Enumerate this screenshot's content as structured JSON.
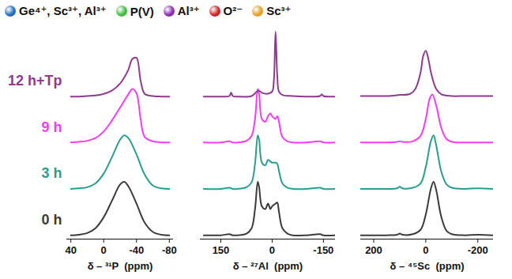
{
  "species_legend": [
    {
      "label": "Ge⁴⁺, Sc³⁺, Al³⁺",
      "color": "#1f6fc0"
    },
    {
      "label": "P(V)",
      "color": "#3fbf3f"
    },
    {
      "label": "Al³⁺",
      "color": "#8a2bb8"
    },
    {
      "label": "O²⁻",
      "color": "#d42020"
    },
    {
      "label": "Sc³⁺",
      "color": "#e8a020"
    }
  ],
  "chart_data": [
    {
      "type": "line",
      "x_label": "δ – ³¹P  (ppm)",
      "xlim": [
        45,
        -85
      ],
      "xticks": [
        40,
        0,
        -40,
        -80
      ],
      "tick_labels": "x",
      "series": [
        {
          "name": "0 h",
          "color": "#3b3b3b",
          "x": [
            40,
            30,
            20,
            10,
            0,
            -10,
            -20,
            -25,
            -30,
            -40,
            -50,
            -60,
            -70,
            -80
          ],
          "values": [
            0.02,
            0.03,
            0.06,
            0.15,
            0.35,
            0.65,
            0.95,
            1.0,
            0.92,
            0.6,
            0.25,
            0.08,
            0.03,
            0.02
          ]
        },
        {
          "name": "3 h",
          "color": "#2a9d8e",
          "x": [
            40,
            30,
            20,
            10,
            0,
            -10,
            -20,
            -25,
            -30,
            -40,
            -50,
            -60,
            -70,
            -80
          ],
          "values": [
            0.02,
            0.03,
            0.05,
            0.12,
            0.3,
            0.6,
            0.92,
            1.0,
            0.95,
            0.65,
            0.28,
            0.08,
            0.03,
            0.02
          ]
        },
        {
          "name": "9 h",
          "color": "#f53cf5",
          "x": [
            40,
            30,
            20,
            10,
            0,
            -10,
            -20,
            -30,
            -35,
            -40,
            -45,
            -50,
            -60,
            -70,
            -80
          ],
          "values": [
            0.02,
            0.03,
            0.05,
            0.1,
            0.22,
            0.42,
            0.66,
            0.9,
            1.0,
            0.92,
            0.45,
            0.12,
            0.04,
            0.02,
            0.02
          ]
        },
        {
          "name": "12 h+Tp",
          "color": "#8e3a8e",
          "x": [
            40,
            30,
            20,
            10,
            0,
            -10,
            -20,
            -30,
            -35,
            -40,
            -45,
            -50,
            -60,
            -70,
            -80
          ],
          "values": [
            0.01,
            0.01,
            0.02,
            0.03,
            0.06,
            0.12,
            0.25,
            0.5,
            0.7,
            0.72,
            0.3,
            0.06,
            0.02,
            0.01,
            0.01
          ]
        }
      ]
    },
    {
      "type": "line",
      "x_label": "δ – ²⁷Al  (ppm)",
      "xlim": [
        210,
        -185
      ],
      "xticks": [
        150,
        0,
        -150
      ],
      "tick_labels": "x",
      "series": [
        {
          "color": "#3b3b3b",
          "x": [
            200,
            150,
            125,
            115,
            100,
            75,
            60,
            50,
            42,
            38,
            30,
            20,
            12,
            5,
            0,
            -10,
            -15,
            -20,
            -30,
            -45,
            -60,
            -100,
            -140,
            -150,
            -185
          ],
          "values": [
            0.02,
            0.02,
            0.04,
            0.02,
            0.02,
            0.05,
            0.15,
            0.5,
            1.0,
            0.9,
            0.55,
            0.5,
            0.6,
            0.5,
            0.55,
            0.6,
            0.62,
            0.45,
            0.15,
            0.05,
            0.02,
            0.02,
            0.04,
            0.02,
            0.02
          ]
        },
        {
          "color": "#2a9d8e",
          "x": [
            200,
            150,
            125,
            115,
            100,
            75,
            60,
            50,
            42,
            38,
            30,
            20,
            12,
            5,
            0,
            -10,
            -15,
            -20,
            -30,
            -45,
            -60,
            -100,
            -140,
            -150,
            -185
          ],
          "values": [
            0.02,
            0.02,
            0.04,
            0.02,
            0.02,
            0.05,
            0.14,
            0.48,
            1.0,
            0.92,
            0.5,
            0.45,
            0.55,
            0.52,
            0.5,
            0.5,
            0.48,
            0.35,
            0.12,
            0.04,
            0.02,
            0.02,
            0.04,
            0.02,
            0.02
          ]
        },
        {
          "color": "#f53cf5",
          "x": [
            200,
            150,
            125,
            115,
            100,
            75,
            60,
            50,
            42,
            38,
            30,
            20,
            12,
            5,
            0,
            -10,
            -15,
            -20,
            -30,
            -45,
            -60,
            -100,
            -140,
            -150,
            -185
          ],
          "values": [
            0.02,
            0.02,
            0.04,
            0.02,
            0.02,
            0.05,
            0.14,
            0.45,
            1.0,
            0.9,
            0.45,
            0.4,
            0.5,
            0.55,
            0.5,
            0.45,
            0.5,
            0.4,
            0.12,
            0.04,
            0.02,
            0.02,
            0.04,
            0.02,
            0.02
          ]
        },
        {
          "color": "#8e3a8e",
          "x": [
            200,
            150,
            125,
            120,
            115,
            100,
            60,
            45,
            40,
            30,
            15,
            0,
            -5,
            -10,
            -15,
            -20,
            -30,
            -60,
            -100,
            -140,
            -145,
            -150,
            -185
          ],
          "values": [
            0.01,
            0.01,
            0.02,
            0.08,
            0.02,
            0.01,
            0.02,
            0.1,
            0.12,
            0.08,
            0.06,
            0.1,
            0.3,
            1.2,
            0.4,
            0.1,
            0.04,
            0.02,
            0.01,
            0.02,
            0.05,
            0.02,
            0.01
          ]
        }
      ]
    },
    {
      "type": "line",
      "x_label": "δ – ⁴⁵Sc  (ppm)",
      "xlim": [
        250,
        -260
      ],
      "xticks": [
        200,
        0,
        -200
      ],
      "tick_labels": "x",
      "series": [
        {
          "color": "#3b3b3b",
          "x": [
            250,
            200,
            150,
            110,
            100,
            90,
            50,
            20,
            0,
            -20,
            -30,
            -40,
            -60,
            -80,
            -100,
            -150,
            -200,
            -260
          ],
          "values": [
            0.02,
            0.02,
            0.02,
            0.03,
            0.05,
            0.03,
            0.04,
            0.12,
            0.4,
            0.88,
            1.0,
            0.85,
            0.35,
            0.1,
            0.04,
            0.02,
            0.03,
            0.02
          ]
        },
        {
          "color": "#2a9d8e",
          "x": [
            250,
            200,
            150,
            110,
            100,
            90,
            50,
            20,
            0,
            -20,
            -30,
            -40,
            -60,
            -80,
            -100,
            -150,
            -200,
            -260
          ],
          "values": [
            0.02,
            0.02,
            0.02,
            0.03,
            0.06,
            0.03,
            0.04,
            0.12,
            0.42,
            0.9,
            1.0,
            0.82,
            0.33,
            0.1,
            0.04,
            0.02,
            0.03,
            0.02
          ]
        },
        {
          "color": "#f53cf5",
          "x": [
            250,
            200,
            150,
            110,
            100,
            90,
            50,
            20,
            0,
            -15,
            -25,
            -40,
            -60,
            -80,
            -100,
            -150,
            -200,
            -260
          ],
          "values": [
            0.02,
            0.02,
            0.02,
            0.03,
            0.04,
            0.03,
            0.04,
            0.14,
            0.45,
            0.82,
            0.9,
            0.7,
            0.28,
            0.08,
            0.03,
            0.02,
            0.02,
            0.02
          ]
        },
        {
          "color": "#8e3a8e",
          "x": [
            250,
            200,
            150,
            100,
            60,
            40,
            20,
            10,
            0,
            -10,
            -20,
            -40,
            -60,
            -100,
            -150,
            -200,
            -260
          ],
          "values": [
            0.02,
            0.02,
            0.02,
            0.04,
            0.06,
            0.15,
            0.45,
            0.75,
            0.85,
            0.7,
            0.45,
            0.15,
            0.05,
            0.02,
            0.02,
            0.02,
            0.02
          ]
        }
      ]
    }
  ]
}
